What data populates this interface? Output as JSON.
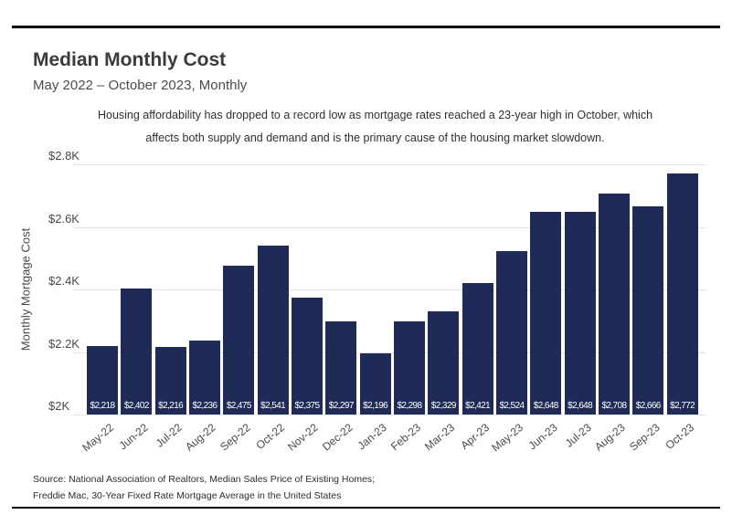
{
  "header": {
    "title": "Median Monthly Cost",
    "subtitle": "May 2022 – October 2023, Monthly"
  },
  "annotation": {
    "line1": "Housing affordability has dropped to a record low as mortgage rates reached a 23-year high in October, which",
    "line2": "affects both supply and demand and is the primary cause of the housing market slowdown."
  },
  "source": {
    "line1": "Source: National Association of Realtors, Median Sales Price of Existing Homes;",
    "line2": "Freddie Mac, 30-Year Fixed Rate Mortgage Average in the United States"
  },
  "chart_data": {
    "type": "bar",
    "title": "Median Monthly Cost",
    "subtitle": "May 2022 – October 2023, Monthly",
    "xlabel": "",
    "ylabel": "Monthly Mortgage Cost",
    "categories": [
      "May-22",
      "Jun-22",
      "Jul-22",
      "Aug-22",
      "Sep-22",
      "Oct-22",
      "Nov-22",
      "Dec-22",
      "Jan-23",
      "Feb-23",
      "Mar-23",
      "Apr-23",
      "May-23",
      "Jun-23",
      "Jul-23",
      "Aug-23",
      "Sep-23",
      "Oct-23"
    ],
    "values": [
      2218,
      2402,
      2216,
      2236,
      2475,
      2541,
      2375,
      2297,
      2196,
      2298,
      2329,
      2421,
      2524,
      2648,
      2648,
      2708,
      2666,
      2772
    ],
    "bar_value_labels": [
      "$2,218",
      "$2,402",
      "$2,216",
      "$2,236",
      "$2,475",
      "$2,541",
      "$2,375",
      "$2,297",
      "$2,196",
      "$2,298",
      "$2,329",
      "$2,421",
      "$2,524",
      "$2,648",
      "$2,648",
      "$2,708",
      "$2,666",
      "$2,772"
    ],
    "ylim": [
      2000,
      2800
    ],
    "yticks": [
      {
        "value": 2000,
        "label": "$2K"
      },
      {
        "value": 2200,
        "label": "$2.2K"
      },
      {
        "value": 2400,
        "label": "$2.4K"
      },
      {
        "value": 2600,
        "label": "$2.6K"
      },
      {
        "value": 2800,
        "label": "$2.8K"
      }
    ],
    "grid": true,
    "legend_position": "none",
    "bar_color": "#1f2a56",
    "gridline_color": "#e3e3e3",
    "bar_label_color": "#ffffff"
  }
}
